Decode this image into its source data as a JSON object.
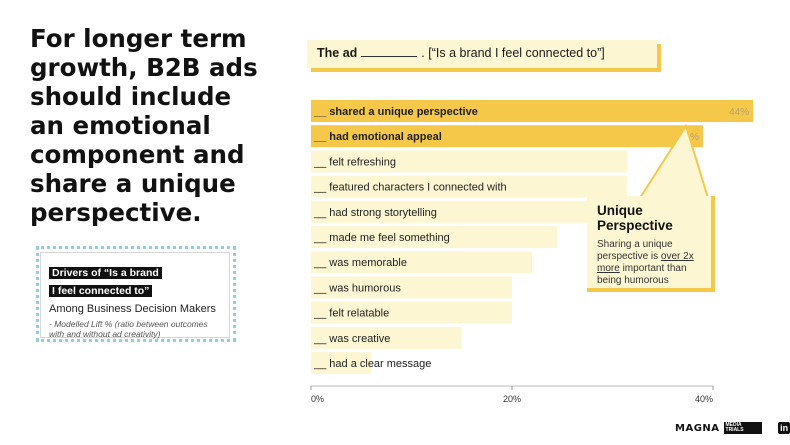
{
  "headline": "For longer term growth, B2B ads should include an emotional component and share a unique perspective.",
  "drivers_box": {
    "title_line1": "Drivers of “Is a brand",
    "title_line2": "I feel connected to”",
    "subtitle": "Among Business Decision Makers",
    "note": "- Modelled Lift % (ratio between outcomes with and without ad creativity)"
  },
  "prompt": {
    "lead": "The ad",
    "suffix": ".  [“Is a brand I feel connected to”]"
  },
  "callout": {
    "title": "Unique Perspective",
    "text_before": "Sharing a unique perspective is ",
    "text_underlined": "over 2x more",
    "text_after": " important than being humorous"
  },
  "footer": {
    "brand": "MAGNA",
    "brand_sub": "MEDIA TRIALS",
    "social": "in"
  },
  "colors": {
    "highlight": "#f5c84a",
    "light": "#fdf6d2",
    "dotted": "#8fd0dd"
  },
  "chart_data": {
    "type": "bar",
    "orientation": "horizontal",
    "categories": [
      "__ shared a unique perspective",
      "__ had emotional appeal",
      "__ felt refreshing",
      "__ featured characters I connected with",
      "__ had strong storytelling",
      "__ made me feel something",
      "__ was memorable",
      "__ was humorous",
      "__ felt relatable",
      "__ was creative",
      "__ had a clear message"
    ],
    "values": [
      44,
      39,
      31.5,
      31.5,
      28.5,
      24.5,
      22,
      20,
      20,
      15,
      6
    ],
    "data_labels": [
      "44%",
      "39%",
      "",
      "",
      "",
      "",
      "",
      "",
      "",
      "",
      ""
    ],
    "highlighted": [
      true,
      true,
      false,
      false,
      false,
      false,
      false,
      false,
      false,
      false,
      false
    ],
    "xlim": [
      0,
      40
    ],
    "xticks": [
      0,
      20,
      40
    ],
    "xtick_labels": [
      "0%",
      "20%",
      "40%"
    ],
    "grid": false
  }
}
